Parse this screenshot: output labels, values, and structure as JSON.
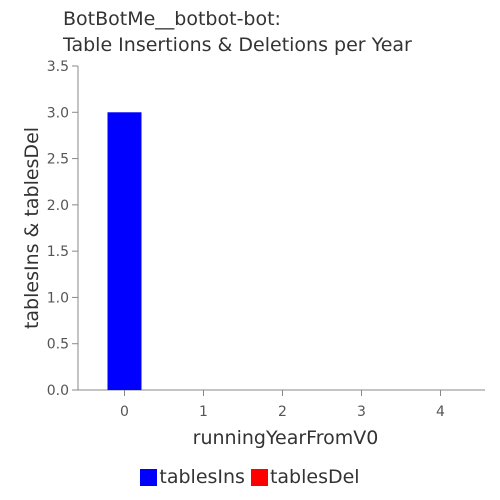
{
  "chart_data": {
    "type": "bar",
    "title_lines": [
      "BotBotMe__botbot-bot:",
      "Table Insertions & Deletions per Year"
    ],
    "xlabel": "runningYearFromV0",
    "ylabel": "tablesIns & tablesDel",
    "categories": [
      "0",
      "1",
      "2",
      "3",
      "4"
    ],
    "ylim": [
      0,
      3.5
    ],
    "yticks": [
      "0.0",
      "0.5",
      "1.0",
      "1.5",
      "2.0",
      "2.5",
      "3.0",
      "3.5"
    ],
    "series": [
      {
        "name": "tablesIns",
        "color": "#0000ff",
        "values": [
          3,
          0,
          0,
          0,
          0
        ]
      },
      {
        "name": "tablesDel",
        "color": "#ff0000",
        "values": [
          0,
          0,
          0,
          0,
          0
        ]
      }
    ],
    "grid": false,
    "legend": "bottom-center"
  }
}
